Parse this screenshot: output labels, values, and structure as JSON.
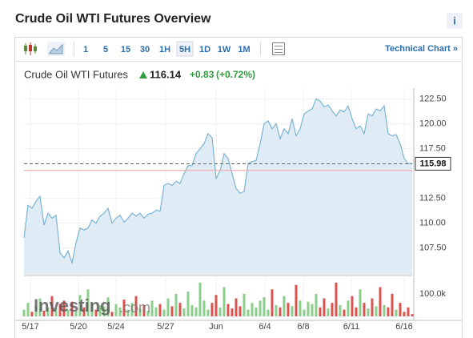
{
  "header": {
    "title": "Crude Oil WTI Futures Overview",
    "info": "i"
  },
  "toolbar": {
    "intervals": [
      "1",
      "5",
      "15",
      "30",
      "1H",
      "5H",
      "1D",
      "1W",
      "1M"
    ],
    "selected": "5H",
    "link": "Technical Chart »"
  },
  "quote": {
    "name": "Crude Oil WTI Futures",
    "price": "116.14",
    "change": "+0.83",
    "change_pct": "(+0.72%)"
  },
  "watermark": {
    "brand": "Investing",
    "suffix": ".com"
  },
  "chart_data": {
    "type": "area",
    "x": [
      0,
      1,
      2,
      3,
      4,
      5,
      6,
      7,
      8,
      9,
      10,
      11,
      12,
      13,
      14,
      15,
      16,
      17,
      18,
      19,
      20,
      21,
      22,
      23,
      24,
      25,
      26,
      27,
      28,
      29,
      30,
      31,
      32,
      33,
      34,
      35,
      36,
      37,
      38,
      39,
      40,
      41,
      42,
      43,
      44,
      45,
      46,
      47,
      48,
      49,
      50,
      51,
      52,
      53,
      54,
      55,
      56,
      57,
      58,
      59,
      60,
      61,
      62,
      63,
      64,
      65,
      66,
      67,
      68,
      69,
      70,
      71,
      72,
      73,
      74,
      75,
      76,
      77,
      78,
      79,
      80,
      81,
      82,
      83,
      84,
      85,
      86,
      87,
      88,
      89,
      90,
      91,
      92,
      93,
      94,
      95,
      96,
      97
    ],
    "xlim": [
      0,
      97
    ],
    "xticks": [
      {
        "value": 1.6,
        "label": "5/17"
      },
      {
        "value": 13.6,
        "label": "5/20"
      },
      {
        "value": 23,
        "label": "5/24"
      },
      {
        "value": 35.4,
        "label": "5/27"
      },
      {
        "value": 48,
        "label": "Jun"
      },
      {
        "value": 60.2,
        "label": "6/4"
      },
      {
        "value": 69.8,
        "label": "6/8"
      },
      {
        "value": 81.8,
        "label": "6/11"
      },
      {
        "value": 95,
        "label": "6/16"
      }
    ],
    "series": [
      {
        "name": "Price",
        "color": "#7ab3d4",
        "fill": "#dfecf5",
        "values": [
          108.5,
          111.8,
          111.5,
          112.2,
          112.7,
          109.8,
          111,
          110.5,
          110.8,
          107,
          106.5,
          107.2,
          106,
          108,
          109.5,
          109.3,
          109.5,
          110.3,
          110,
          110.7,
          111,
          111.5,
          110,
          110.5,
          110.8,
          110.1,
          110.5,
          111,
          110.7,
          111,
          110.5,
          110.9,
          111,
          111.3,
          111.2,
          113.8,
          114,
          113.8,
          114.2,
          114,
          115,
          115.8,
          115.8,
          117,
          117.5,
          118,
          119,
          118.6,
          114.5,
          115.3,
          117,
          116.5,
          115,
          113.5,
          113,
          113.2,
          116,
          116.2,
          116.3,
          118,
          120,
          120.3,
          119.5,
          120,
          118.5,
          119.5,
          119,
          120.5,
          118.8,
          119.5,
          121,
          121.3,
          121.5,
          122.5,
          122.3,
          121.7,
          121.9,
          121.3,
          120.8,
          121.4,
          121.2,
          121.8,
          120.5,
          119.5,
          119.8,
          119,
          121,
          120.8,
          121.5,
          121.3,
          121.8,
          119,
          118.8,
          118.9,
          118,
          116.5,
          116,
          115.98
        ]
      },
      {
        "name": "Volume",
        "axis": "y2",
        "up_color": "#8ccf8c",
        "down_color": "#d9534f",
        "values": [
          30,
          60,
          20,
          45,
          80,
          25,
          40,
          90,
          35,
          55,
          70,
          30,
          65,
          25,
          95,
          40,
          120,
          60,
          30,
          50,
          45,
          85,
          20,
          55,
          40,
          75,
          30,
          60,
          90,
          35,
          50,
          25,
          70,
          40,
          55,
          30,
          80,
          45,
          100,
          60,
          35,
          110,
          50,
          40,
          150,
          70,
          30,
          60,
          95,
          40,
          130,
          55,
          35,
          80,
          45,
          100,
          30,
          60,
          40,
          70,
          85,
          30,
          120,
          50,
          40,
          90,
          60,
          45,
          140,
          70,
          30,
          65,
          55,
          100,
          40,
          80,
          35,
          60,
          150,
          50,
          30,
          70,
          90,
          40,
          120,
          60,
          35,
          80,
          45,
          130,
          50,
          40,
          100,
          30,
          60,
          20,
          40,
          10
        ]
      }
    ],
    "ylim": [
      104.8,
      123.6
    ],
    "yticks": [
      {
        "value": 107.5,
        "label": "107.50"
      },
      {
        "value": 110,
        "label": "110.00"
      },
      {
        "value": 112.5,
        "label": "112.50"
      },
      {
        "value": 117.5,
        "label": "117.50"
      },
      {
        "value": 120,
        "label": "120.00"
      },
      {
        "value": 122.5,
        "label": "122.50"
      }
    ],
    "y2lim": [
      0,
      178
    ],
    "y2ticks": [
      {
        "value": 100,
        "label": "100.0k"
      }
    ],
    "last_price": 115.98,
    "previous_close": 115.31,
    "grid": true
  }
}
